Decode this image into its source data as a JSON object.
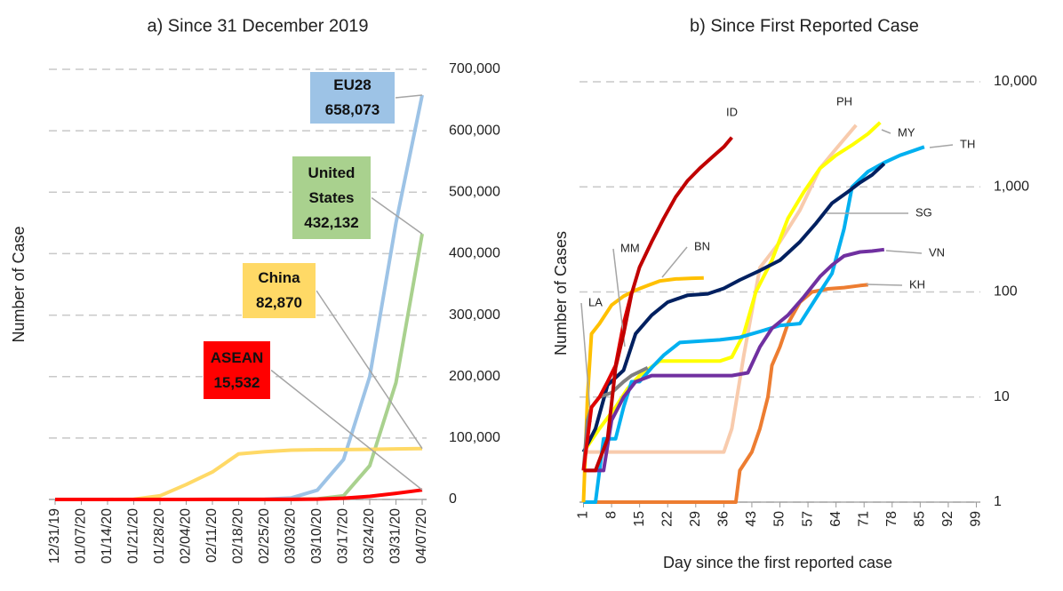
{
  "chart_data": [
    {
      "type": "line",
      "title": "a) Since 31 December 2019",
      "ylabel": "Number of  Case",
      "y_axis_side": "right",
      "grid": true,
      "categories": [
        "12/31/19",
        "01/07/20",
        "01/14/20",
        "01/21/20",
        "01/28/20",
        "02/04/20",
        "02/11/20",
        "02/18/20",
        "02/25/20",
        "03/03/20",
        "03/10/20",
        "03/17/20",
        "03/24/20",
        "03/31/20",
        "04/07/20"
      ],
      "ylim": [
        0,
        700000
      ],
      "yticks": [
        0,
        {
          "value": 100000,
          "label": "100,000"
        },
        {
          "value": 200000,
          "label": "200,000"
        },
        {
          "value": 300000,
          "label": "300,000"
        },
        {
          "value": 400000,
          "label": "400,000"
        },
        {
          "value": 500000,
          "label": "500,000"
        },
        {
          "value": 600000,
          "label": "600,000"
        },
        {
          "value": 700000,
          "label": "700,000"
        }
      ],
      "series": [
        {
          "name": "EU28",
          "color": "#9dc3e6",
          "values": [
            0,
            0,
            0,
            0,
            10,
            30,
            50,
            100,
            400,
            2500,
            15000,
            65000,
            200000,
            450000,
            658073
          ],
          "value_labels": [
            null,
            null,
            null,
            null,
            null,
            null,
            null,
            null,
            null,
            null,
            null,
            null,
            null,
            null,
            "658,073"
          ]
        },
        {
          "name": "United States",
          "color": "#a9d18e",
          "values": [
            0,
            0,
            0,
            1,
            5,
            11,
            13,
            15,
            60,
            100,
            1000,
            6000,
            55000,
            190000,
            432132
          ],
          "value_labels": [
            null,
            null,
            null,
            null,
            null,
            null,
            null,
            null,
            null,
            null,
            null,
            null,
            null,
            null,
            "432,132"
          ]
        },
        {
          "name": "China",
          "color": "#ffd966",
          "values": [
            27,
            59,
            41,
            440,
            5974,
            24324,
            44653,
            74185,
            77779,
            80270,
            80924,
            81116,
            81591,
            82279,
            82870
          ],
          "value_labels": [
            null,
            null,
            null,
            null,
            null,
            null,
            null,
            null,
            null,
            null,
            null,
            null,
            null,
            null,
            "82,870"
          ]
        },
        {
          "name": "ASEAN",
          "color": "#ff0000",
          "values": [
            0,
            0,
            0,
            0,
            10,
            40,
            80,
            100,
            120,
            150,
            600,
            2000,
            5000,
            10000,
            15532
          ],
          "value_labels": [
            null,
            null,
            null,
            null,
            null,
            null,
            null,
            null,
            null,
            null,
            null,
            null,
            null,
            null,
            "15,532"
          ]
        }
      ]
    },
    {
      "type": "line",
      "title": "b) Since First Reported Case",
      "xlabel": "Day since the first reported case",
      "ylabel": "Number of Cases",
      "y_axis_side": "right",
      "grid": true,
      "log_y": true,
      "xlim": [
        0,
        100
      ],
      "xticks": [
        1,
        8,
        15,
        22,
        29,
        36,
        43,
        50,
        57,
        64,
        71,
        78,
        85,
        92,
        99
      ],
      "ylim": [
        1,
        10000
      ],
      "yticks": [
        1,
        10,
        100,
        {
          "value": 1000,
          "label": "1,000"
        },
        {
          "value": 10000,
          "label": "10,000"
        }
      ],
      "series": [
        {
          "name": "KH",
          "color": "#ed7d31",
          "x": [
            1,
            10,
            20,
            30,
            39,
            40,
            43,
            45,
            47,
            48,
            50,
            52,
            55,
            58,
            62,
            66,
            70,
            72
          ],
          "values": [
            1,
            1,
            1,
            1,
            1,
            2,
            3,
            5,
            10,
            20,
            30,
            50,
            80,
            100,
            107,
            110,
            115,
            117
          ]
        },
        {
          "name": "PH",
          "color": "#f8cbad",
          "x": [
            1,
            10,
            20,
            30,
            36,
            38,
            41,
            45,
            50,
            55,
            60,
            64,
            69
          ],
          "values": [
            3,
            3,
            3,
            3,
            3,
            5,
            25,
            170,
            300,
            600,
            1500,
            2300,
            3870
          ]
        },
        {
          "name": "MY",
          "color": "#ffff00",
          "x": [
            1,
            5,
            9,
            12,
            15,
            20,
            25,
            30,
            35,
            38,
            41,
            44,
            48,
            52,
            56,
            60,
            64,
            68,
            72,
            75
          ],
          "values": [
            3,
            5,
            8,
            12,
            16,
            22,
            22,
            22,
            22,
            24,
            40,
            100,
            200,
            500,
            900,
            1500,
            2000,
            2500,
            3200,
            4100
          ]
        },
        {
          "name": "TH",
          "color": "#00b0f0",
          "x": [
            1,
            4,
            6,
            9,
            11,
            13,
            15,
            18,
            21,
            25,
            30,
            35,
            40,
            45,
            50,
            55,
            60,
            63,
            66,
            68,
            72,
            76,
            80,
            86
          ],
          "values": [
            1,
            1,
            4,
            4,
            8,
            14,
            14,
            19,
            25,
            33,
            34,
            35,
            37,
            42,
            48,
            50,
            100,
            150,
            400,
            1000,
            1400,
            1700,
            2000,
            2400
          ]
        },
        {
          "name": "SG",
          "color": "#002060",
          "x": [
            1,
            4,
            7,
            11,
            14,
            18,
            22,
            27,
            32,
            36,
            40,
            45,
            50,
            55,
            59,
            63,
            67,
            70,
            73,
            76
          ],
          "values": [
            3,
            5,
            13,
            18,
            40,
            60,
            80,
            93,
            96,
            108,
            130,
            160,
            200,
            300,
            450,
            700,
            900,
            1100,
            1300,
            1660
          ]
        },
        {
          "name": "VN",
          "color": "#7030a0",
          "x": [
            1,
            6,
            8,
            11,
            14,
            18,
            25,
            32,
            38,
            42,
            45,
            48,
            52,
            56,
            60,
            63,
            66,
            70,
            73,
            76
          ],
          "values": [
            2,
            2,
            6,
            10,
            14,
            16,
            16,
            16,
            16,
            17,
            30,
            45,
            60,
            90,
            140,
            180,
            220,
            240,
            245,
            253
          ]
        },
        {
          "name": "BN",
          "color": "#ffc000",
          "x": [
            1,
            2,
            3,
            5,
            8,
            11,
            14,
            17,
            20,
            24,
            28,
            31
          ],
          "values": [
            1,
            10,
            40,
            50,
            75,
            91,
            104,
            115,
            127,
            133,
            135,
            136
          ]
        },
        {
          "name": "LA",
          "color": "#7f7f7f",
          "x": [
            1,
            2,
            3,
            5,
            8,
            11,
            13,
            17
          ],
          "values": [
            2,
            6,
            8,
            10,
            11,
            14,
            16,
            19
          ]
        },
        {
          "name": "MM",
          "color": "#e00000",
          "x": [
            1,
            3,
            5,
            7,
            9,
            11,
            13
          ],
          "values": [
            2,
            8,
            10,
            14,
            20,
            50,
            98
          ]
        },
        {
          "name": "ID",
          "color": "#c00000",
          "x": [
            1,
            4,
            7,
            9,
            11,
            13,
            15,
            18,
            21,
            24,
            27,
            30,
            33,
            36,
            38
          ],
          "values": [
            2,
            2,
            4,
            19,
            40,
            96,
            172,
            300,
            500,
            800,
            1150,
            1500,
            1900,
            2400,
            2956
          ]
        }
      ]
    }
  ]
}
